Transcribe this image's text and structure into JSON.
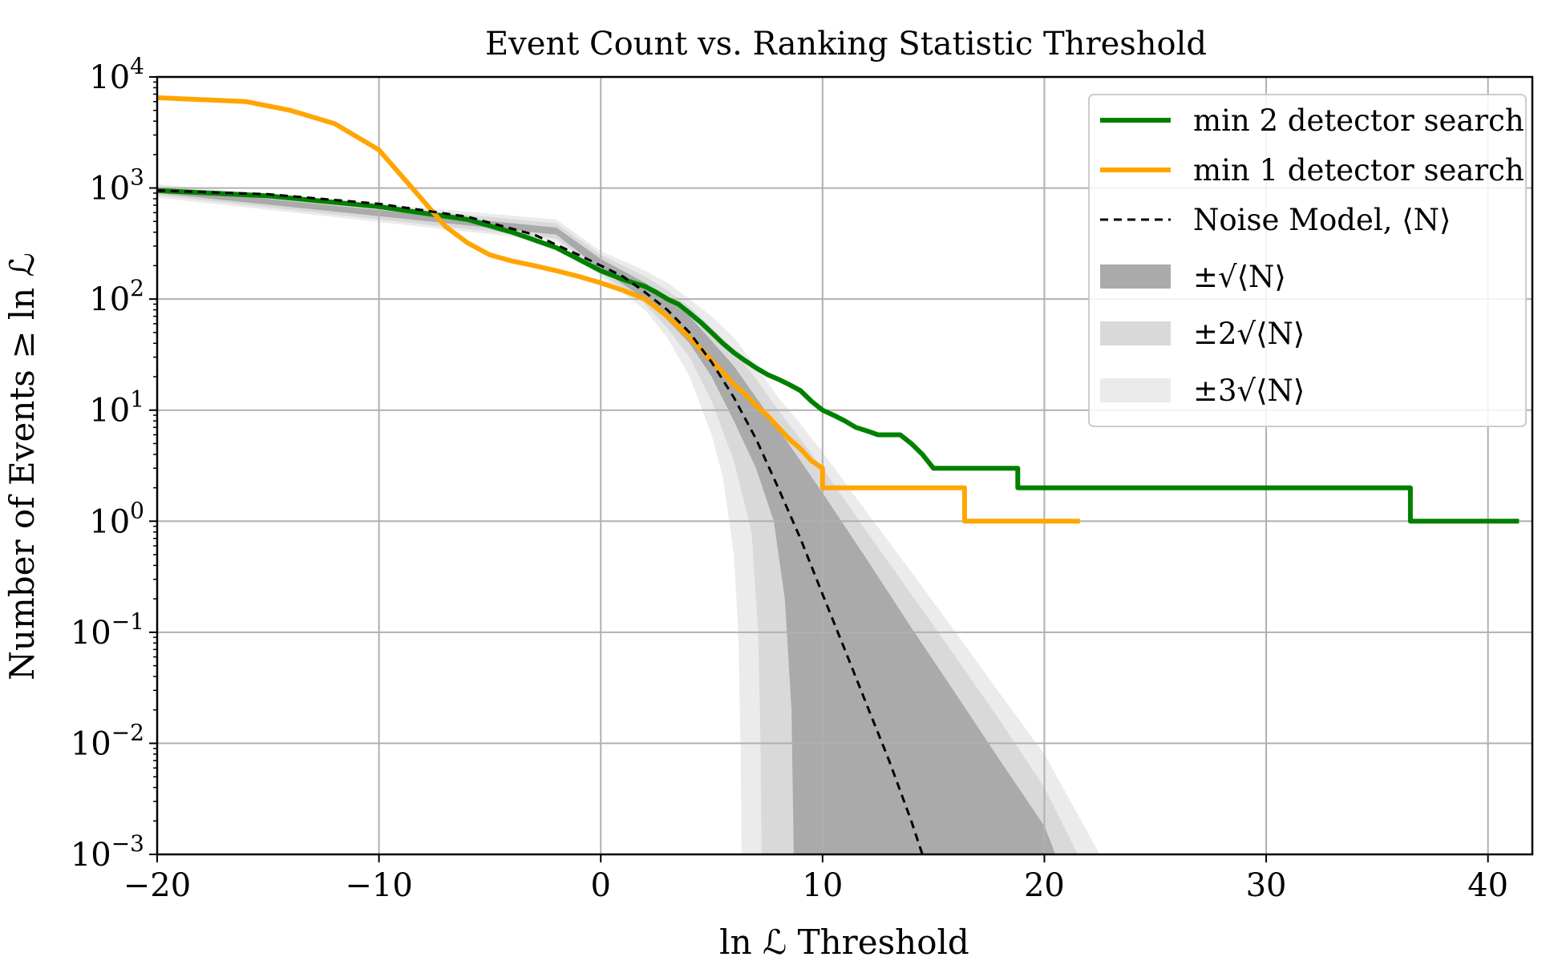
{
  "chart_data": {
    "type": "line",
    "title": "Event Count vs. Ranking Statistic Threshold",
    "xlabel": "ln ℒ Threshold",
    "ylabel": "Number of Events ≥ ln ℒ",
    "xlim": [
      -20,
      42
    ],
    "ylim_log10": [
      -3,
      4
    ],
    "grid": true,
    "yscale": "log",
    "x_ticks": [
      {
        "value": -20,
        "label": "−20"
      },
      {
        "value": -10,
        "label": "−10"
      },
      {
        "value": 0,
        "label": "0"
      },
      {
        "value": 10,
        "label": "10"
      },
      {
        "value": 20,
        "label": "20"
      },
      {
        "value": 30,
        "label": "30"
      },
      {
        "value": 40,
        "label": "40"
      }
    ],
    "y_ticks": [
      {
        "exp": 4,
        "base": "10",
        "sup": "4"
      },
      {
        "exp": 3,
        "base": "10",
        "sup": "3"
      },
      {
        "exp": 2,
        "base": "10",
        "sup": "2"
      },
      {
        "exp": 1,
        "base": "10",
        "sup": "1"
      },
      {
        "exp": 0,
        "base": "10",
        "sup": "0"
      },
      {
        "exp": -1,
        "base": "10",
        "sup": "−1"
      },
      {
        "exp": -2,
        "base": "10",
        "sup": "−2"
      },
      {
        "exp": -3,
        "base": "10",
        "sup": "−3"
      }
    ],
    "noise_model": {
      "name": "Noise Model, ⟨N⟩",
      "x": [
        -20,
        -15,
        -10,
        -6,
        -3,
        -1,
        0,
        1,
        2,
        3,
        4,
        5,
        6,
        7,
        8,
        9,
        10,
        11,
        12,
        13,
        14,
        14.5
      ],
      "y": [
        950,
        880,
        720,
        550,
        380,
        250,
        200,
        160,
        115,
        80,
        50,
        27,
        13,
        5.5,
        2.0,
        0.7,
        0.22,
        0.07,
        0.022,
        0.007,
        0.002,
        0.001
      ]
    },
    "bands": [
      {
        "name": "±3√⟨N⟩",
        "color": "#ebebeb",
        "lower_x": [
          -20,
          -2,
          0,
          2,
          3,
          4,
          5,
          5.5,
          6,
          6.2,
          6.3,
          6.35
        ],
        "lower_y": [
          820,
          330,
          160,
          80,
          45,
          20,
          6,
          2.5,
          0.5,
          0.1,
          0.01,
          0.001
        ],
        "upper_x": [
          -20,
          -2,
          0,
          2,
          3,
          4,
          5,
          6,
          7,
          8,
          9,
          10,
          12,
          14,
          16,
          18,
          20,
          22.5
        ],
        "upper_y": [
          1080,
          520,
          270,
          180,
          140,
          100,
          70,
          45,
          25,
          13,
          7.5,
          4.2,
          1.2,
          0.35,
          0.1,
          0.028,
          0.008,
          0.001
        ]
      },
      {
        "name": "±2√⟨N⟩",
        "color": "#d9d9d9",
        "lower_x": [
          -20,
          -2,
          0,
          2,
          3,
          4,
          5,
          6,
          6.8,
          7.1,
          7.2,
          7.25
        ],
        "lower_y": [
          860,
          350,
          170,
          90,
          55,
          30,
          12,
          3.5,
          0.8,
          0.1,
          0.01,
          0.001
        ],
        "upper_x": [
          -20,
          -2,
          0,
          2,
          3,
          4,
          5,
          6,
          7,
          8,
          9,
          10,
          12,
          14,
          16,
          18,
          20,
          21.5
        ],
        "upper_y": [
          1040,
          480,
          250,
          160,
          120,
          85,
          55,
          35,
          19,
          10,
          5.5,
          3.0,
          0.8,
          0.22,
          0.06,
          0.016,
          0.004,
          0.001
        ]
      },
      {
        "name": "±√⟨N⟩",
        "color": "#aaaaaa",
        "lower_x": [
          -20,
          -2,
          0,
          2,
          3,
          4,
          5,
          6,
          7,
          7.8,
          8.3,
          8.6,
          8.7
        ],
        "lower_y": [
          900,
          380,
          185,
          100,
          65,
          40,
          20,
          8,
          3,
          1.0,
          0.2,
          0.02,
          0.001
        ],
        "upper_x": [
          -20,
          -2,
          0,
          2,
          3,
          4,
          5,
          6,
          7,
          8,
          9,
          10,
          12,
          14,
          16,
          18,
          20,
          20.5
        ],
        "upper_y": [
          1000,
          440,
          230,
          140,
          100,
          70,
          42,
          25,
          13,
          6.8,
          3.5,
          1.8,
          0.45,
          0.11,
          0.028,
          0.007,
          0.0018,
          0.001
        ]
      }
    ],
    "series": [
      {
        "name": "min 2 detector search",
        "color": "#008000",
        "x": [
          -20,
          -15,
          -10,
          -6,
          -4,
          -2,
          0,
          1,
          2,
          2.5,
          3,
          3.5,
          4,
          4.5,
          5,
          5.5,
          6,
          6.5,
          7,
          7.5,
          8,
          8.5,
          9,
          9.5,
          10,
          10.5,
          11,
          11.5,
          12,
          12.5,
          13,
          13.5,
          14,
          14.5,
          15,
          16,
          17,
          18,
          18.8,
          18.8,
          25,
          30,
          36.5,
          36.5,
          41.4
        ],
        "y": [
          950,
          850,
          680,
          520,
          400,
          290,
          180,
          150,
          130,
          115,
          100,
          90,
          75,
          62,
          50,
          40,
          33,
          28,
          24,
          21,
          19,
          17,
          15,
          12,
          10,
          9,
          8,
          7,
          6.5,
          6,
          6,
          6,
          5,
          4,
          3,
          3,
          3,
          3,
          3,
          2,
          2,
          2,
          2,
          1,
          1
        ]
      },
      {
        "name": "min 1 detector search",
        "color": "#ffa500",
        "x": [
          -20,
          -16,
          -14,
          -12,
          -10,
          -8.5,
          -7,
          -6,
          -5,
          -4,
          -3,
          -2,
          -1,
          0,
          1,
          2,
          3,
          4,
          5,
          5.5,
          6,
          6.5,
          7,
          7.5,
          8,
          8.5,
          9,
          9.5,
          10,
          10,
          15,
          16.4,
          16.4,
          21.6
        ],
        "y": [
          6500,
          6000,
          5000,
          3800,
          2200,
          1000,
          450,
          320,
          250,
          220,
          200,
          180,
          160,
          140,
          120,
          100,
          70,
          45,
          28,
          22,
          17,
          14,
          11,
          9,
          7,
          5.5,
          4.5,
          3.5,
          3,
          2,
          2,
          2,
          1,
          1
        ]
      }
    ],
    "legend": {
      "position": "top-right",
      "entries": [
        {
          "label": "min 2 detector search"
        },
        {
          "label": "min 1 detector search"
        },
        {
          "label": "Noise Model, ⟨N⟩"
        },
        {
          "label": "±√⟨N⟩"
        },
        {
          "label": "±2√⟨N⟩"
        },
        {
          "label": "±3√⟨N⟩"
        }
      ]
    }
  }
}
